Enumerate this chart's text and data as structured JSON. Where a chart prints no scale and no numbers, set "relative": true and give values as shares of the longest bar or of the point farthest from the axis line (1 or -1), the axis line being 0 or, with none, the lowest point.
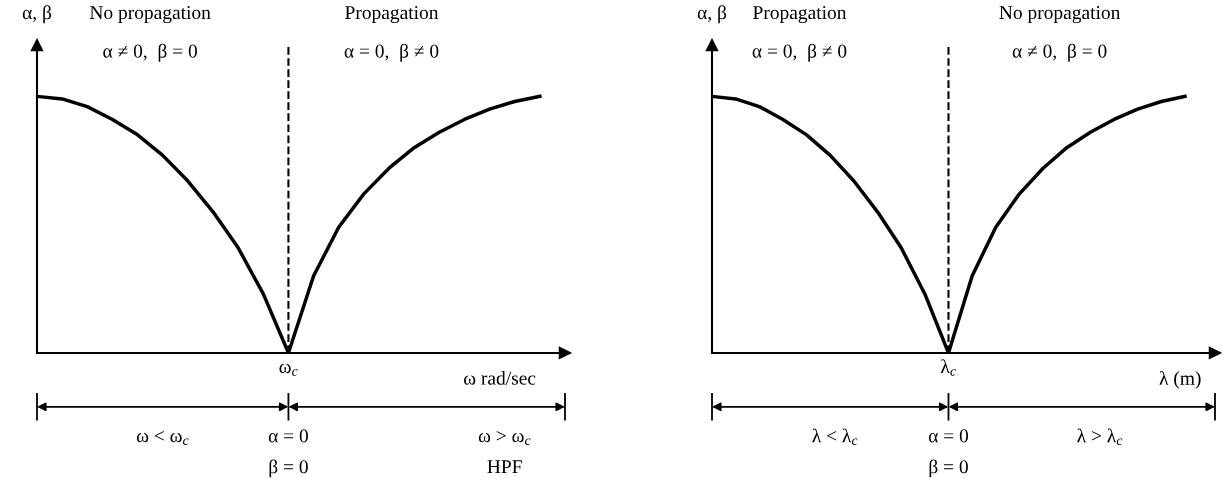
{
  "chart_data": [
    {
      "type": "line",
      "relative": true,
      "ylabel": "α, β",
      "xlabel": "ω rad/sec",
      "categories": [
        null,
        null,
        null,
        null,
        null,
        null,
        null,
        null,
        null,
        null,
        null,
        null,
        null,
        null,
        null,
        null,
        null,
        null,
        null,
        null,
        null
      ],
      "series": [
        {
          "color": "#000000",
          "values": [
            1,
            0.99,
            0.96,
            0.91,
            0.85,
            0.77,
            0.67,
            0.55,
            0.41,
            0.23,
            0,
            0.3,
            0.49,
            0.62,
            0.72,
            0.8,
            0.86,
            0.91,
            0.95,
            0.98,
            1
          ]
        }
      ],
      "ref_lines": [
        {
          "axis": "x",
          "label": "ω$_{c}$",
          "color": "#000000",
          "line_style": "dashed"
        }
      ],
      "annotations": [
        "No propagation",
        "α ≠ 0,  β = 0",
        "Propagation",
        "α = 0,  β ≠ 0",
        "ω < ω$_{c}$",
        "α = 0",
        "β = 0",
        "ω > ω$_{c}$",
        "HPF"
      ],
      "grid": false,
      "legend": false,
      "marker": "none",
      "line_style": "solid"
    },
    {
      "type": "line",
      "relative": true,
      "ylabel": "α, β",
      "xlabel": "λ (m)",
      "categories": [
        null,
        null,
        null,
        null,
        null,
        null,
        null,
        null,
        null,
        null,
        null,
        null,
        null,
        null,
        null,
        null,
        null,
        null,
        null,
        null,
        null
      ],
      "series": [
        {
          "color": "#000000",
          "values": [
            1,
            0.99,
            0.96,
            0.91,
            0.85,
            0.77,
            0.67,
            0.55,
            0.41,
            0.23,
            0,
            0.3,
            0.49,
            0.62,
            0.72,
            0.8,
            0.86,
            0.91,
            0.95,
            0.98,
            1
          ]
        }
      ],
      "ref_lines": [
        {
          "axis": "x",
          "label": "λ$_{c}$",
          "color": "#000000",
          "line_style": "dashed"
        }
      ],
      "annotations": [
        "Propagation",
        "α = 0,  β ≠ 0",
        "No propagation",
        "α ≠ 0,  β = 0",
        "λ < λ$_{c}$",
        "α = 0",
        "β = 0",
        "λ > λ$_{c}$"
      ],
      "grid": false,
      "legend": false,
      "marker": "none",
      "line_style": "solid"
    }
  ]
}
